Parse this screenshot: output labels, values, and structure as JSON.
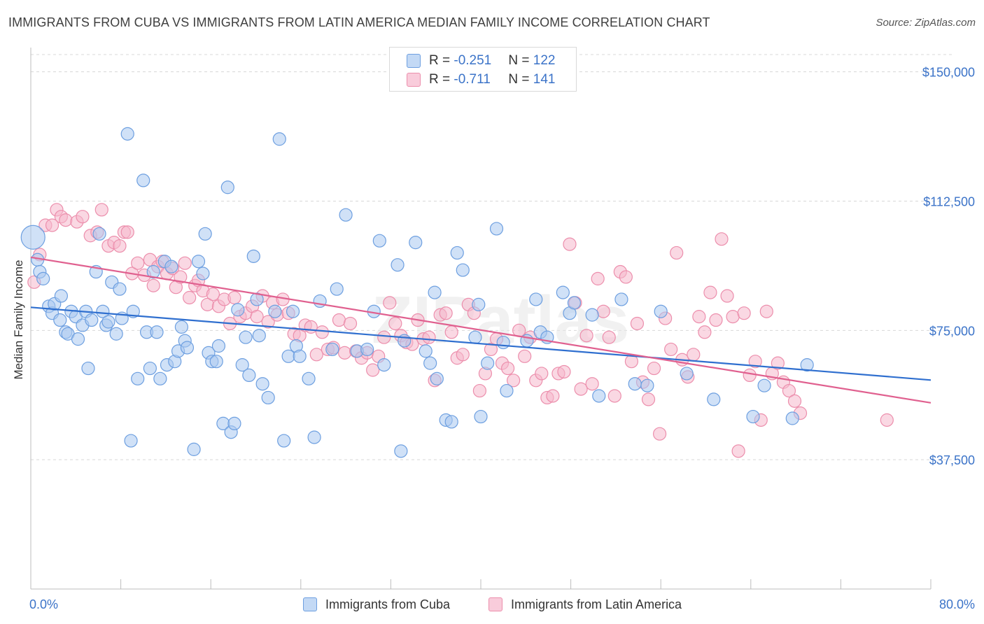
{
  "title": "IMMIGRANTS FROM CUBA VS IMMIGRANTS FROM LATIN AMERICA MEDIAN FAMILY INCOME CORRELATION CHART",
  "source": "Source: ZipAtlas.com",
  "watermark": "ZIPatlas",
  "colors": {
    "blue_fill": "#a9c8f0",
    "blue_stroke": "#6d9fe0",
    "blue_line": "#2f6fcf",
    "pink_fill": "#f6b8cc",
    "pink_stroke": "#ec8eac",
    "pink_line": "#e0608f",
    "axis_label": "#3b73c8",
    "grid": "#d8d8d8"
  },
  "legend": {
    "rows": [
      {
        "r_label": "R = ",
        "r_value": "-0.251",
        "n_label": "N = ",
        "n_value": "122"
      },
      {
        "r_label": "R = ",
        "r_value": "-0.711",
        "n_label": "N = ",
        "n_value": "141"
      }
    ]
  },
  "chart_data": {
    "type": "scatter",
    "title": "IMMIGRANTS FROM CUBA VS IMMIGRANTS FROM LATIN AMERICA MEDIAN FAMILY INCOME CORRELATION CHART",
    "xlabel": "",
    "ylabel": "Median Family Income",
    "xlim": [
      0,
      80
    ],
    "ylim": [
      0,
      155000
    ],
    "x_tick_labels": [
      "0.0%",
      "80.0%"
    ],
    "y_ticks": [
      37500,
      75000,
      112500,
      150000
    ],
    "y_tick_labels": [
      "$37,500",
      "$75,000",
      "$112,500",
      "$150,000"
    ],
    "grid": true,
    "legend_position": "top-center",
    "series": [
      {
        "name": "Immigrants from Cuba",
        "color": "#a9c8f0",
        "trend": {
          "x": [
            0,
            80
          ],
          "y": [
            81700,
            60600
          ]
        },
        "points": [
          [
            0.2,
            102000
          ],
          [
            0.6,
            95500
          ],
          [
            0.8,
            92000
          ],
          [
            1.1,
            90000
          ],
          [
            1.6,
            82000
          ],
          [
            1.9,
            80000
          ],
          [
            2.1,
            82700
          ],
          [
            2.6,
            78000
          ],
          [
            2.7,
            85000
          ],
          [
            3.1,
            74500
          ],
          [
            3.3,
            74000
          ],
          [
            3.6,
            80500
          ],
          [
            4.0,
            79000
          ],
          [
            4.2,
            72500
          ],
          [
            4.6,
            76500
          ],
          [
            4.9,
            80500
          ],
          [
            5.1,
            64000
          ],
          [
            5.4,
            78000
          ],
          [
            5.8,
            92000
          ],
          [
            6.1,
            103000
          ],
          [
            6.4,
            80500
          ],
          [
            6.7,
            76500
          ],
          [
            6.9,
            77500
          ],
          [
            7.2,
            89000
          ],
          [
            7.6,
            74000
          ],
          [
            7.9,
            87000
          ],
          [
            8.1,
            78500
          ],
          [
            8.6,
            132000
          ],
          [
            8.9,
            43000
          ],
          [
            9.1,
            80500
          ],
          [
            9.5,
            61000
          ],
          [
            10.0,
            118500
          ],
          [
            10.3,
            74500
          ],
          [
            10.6,
            64000
          ],
          [
            10.9,
            92000
          ],
          [
            11.2,
            74500
          ],
          [
            11.5,
            61000
          ],
          [
            11.9,
            95000
          ],
          [
            12.1,
            65000
          ],
          [
            12.5,
            93500
          ],
          [
            12.8,
            66000
          ],
          [
            13.1,
            69000
          ],
          [
            13.4,
            76000
          ],
          [
            13.7,
            72000
          ],
          [
            13.9,
            70000
          ],
          [
            14.5,
            40500
          ],
          [
            14.9,
            95000
          ],
          [
            15.3,
            91500
          ],
          [
            15.5,
            103000
          ],
          [
            15.8,
            68500
          ],
          [
            16.1,
            66000
          ],
          [
            16.5,
            66000
          ],
          [
            16.7,
            70500
          ],
          [
            17.1,
            48000
          ],
          [
            17.5,
            116500
          ],
          [
            17.8,
            45500
          ],
          [
            18.1,
            48000
          ],
          [
            18.4,
            81000
          ],
          [
            18.8,
            65000
          ],
          [
            19.1,
            73000
          ],
          [
            19.4,
            62000
          ],
          [
            19.8,
            96500
          ],
          [
            20.1,
            84000
          ],
          [
            20.3,
            73500
          ],
          [
            20.6,
            59500
          ],
          [
            21.1,
            55500
          ],
          [
            21.7,
            80500
          ],
          [
            22.1,
            130500
          ],
          [
            22.5,
            43000
          ],
          [
            22.9,
            67500
          ],
          [
            23.3,
            80500
          ],
          [
            23.6,
            70500
          ],
          [
            23.9,
            67500
          ],
          [
            24.7,
            61000
          ],
          [
            25.2,
            44000
          ],
          [
            25.7,
            83500
          ],
          [
            26.8,
            69500
          ],
          [
            27.2,
            87000
          ],
          [
            28.0,
            108500
          ],
          [
            29.0,
            69000
          ],
          [
            29.9,
            69500
          ],
          [
            30.5,
            80500
          ],
          [
            31.0,
            101000
          ],
          [
            31.4,
            65000
          ],
          [
            32.6,
            94000
          ],
          [
            32.9,
            40000
          ],
          [
            33.2,
            72000
          ],
          [
            34.2,
            100500
          ],
          [
            35.1,
            69000
          ],
          [
            35.5,
            65500
          ],
          [
            35.9,
            86000
          ],
          [
            36.1,
            61000
          ],
          [
            36.9,
            49000
          ],
          [
            37.4,
            48500
          ],
          [
            37.9,
            97500
          ],
          [
            38.4,
            92500
          ],
          [
            39.5,
            73000
          ],
          [
            39.8,
            82500
          ],
          [
            40.0,
            50000
          ],
          [
            40.6,
            65500
          ],
          [
            41.4,
            104500
          ],
          [
            42.0,
            71500
          ],
          [
            42.3,
            57500
          ],
          [
            44.1,
            72000
          ],
          [
            44.9,
            84000
          ],
          [
            45.3,
            74500
          ],
          [
            45.9,
            73000
          ],
          [
            47.3,
            86000
          ],
          [
            47.9,
            80000
          ],
          [
            48.3,
            83000
          ],
          [
            49.9,
            79500
          ],
          [
            50.5,
            56000
          ],
          [
            52.5,
            84000
          ],
          [
            53.7,
            59500
          ],
          [
            54.8,
            59000
          ],
          [
            56.0,
            80500
          ],
          [
            58.3,
            62500
          ],
          [
            60.7,
            55000
          ],
          [
            64.2,
            50000
          ],
          [
            65.2,
            59000
          ],
          [
            67.7,
            49500
          ],
          [
            69.0,
            65000
          ]
        ]
      },
      {
        "name": "Immigrants from Latin America",
        "color": "#f6b8cc",
        "trend": {
          "x": [
            0,
            80
          ],
          "y": [
            96200,
            54000
          ]
        },
        "points": [
          [
            0.3,
            89000
          ],
          [
            0.8,
            97000
          ],
          [
            1.3,
            105500
          ],
          [
            1.9,
            105500
          ],
          [
            2.3,
            110000
          ],
          [
            2.7,
            108000
          ],
          [
            3.1,
            107000
          ],
          [
            4.1,
            106500
          ],
          [
            4.6,
            108000
          ],
          [
            5.3,
            102500
          ],
          [
            5.9,
            103500
          ],
          [
            6.3,
            110000
          ],
          [
            6.9,
            99500
          ],
          [
            7.4,
            100500
          ],
          [
            7.9,
            99500
          ],
          [
            8.3,
            103500
          ],
          [
            8.6,
            103500
          ],
          [
            9.0,
            91500
          ],
          [
            9.5,
            94500
          ],
          [
            10.1,
            91000
          ],
          [
            10.6,
            95500
          ],
          [
            10.9,
            88000
          ],
          [
            11.3,
            93500
          ],
          [
            11.7,
            95000
          ],
          [
            12.1,
            91500
          ],
          [
            12.6,
            93000
          ],
          [
            12.9,
            87500
          ],
          [
            13.3,
            90500
          ],
          [
            13.7,
            94500
          ],
          [
            14.1,
            84500
          ],
          [
            14.6,
            88000
          ],
          [
            14.9,
            89500
          ],
          [
            15.3,
            86500
          ],
          [
            15.7,
            82500
          ],
          [
            16.2,
            85500
          ],
          [
            16.7,
            82000
          ],
          [
            17.2,
            84000
          ],
          [
            17.7,
            77000
          ],
          [
            18.1,
            84500
          ],
          [
            18.6,
            79000
          ],
          [
            19.1,
            80000
          ],
          [
            19.7,
            82000
          ],
          [
            20.1,
            79000
          ],
          [
            20.6,
            85000
          ],
          [
            21.1,
            77500
          ],
          [
            21.5,
            83000
          ],
          [
            21.9,
            79500
          ],
          [
            22.4,
            84000
          ],
          [
            22.9,
            80000
          ],
          [
            23.4,
            74000
          ],
          [
            23.9,
            73500
          ],
          [
            24.4,
            76500
          ],
          [
            24.9,
            76000
          ],
          [
            25.4,
            68000
          ],
          [
            25.9,
            74500
          ],
          [
            26.4,
            69500
          ],
          [
            26.9,
            70000
          ],
          [
            27.4,
            78000
          ],
          [
            27.9,
            68500
          ],
          [
            28.4,
            77000
          ],
          [
            28.9,
            69000
          ],
          [
            29.4,
            67000
          ],
          [
            29.9,
            68500
          ],
          [
            30.4,
            63500
          ],
          [
            30.9,
            67500
          ],
          [
            31.4,
            73000
          ],
          [
            31.9,
            83000
          ],
          [
            32.4,
            77000
          ],
          [
            32.9,
            73500
          ],
          [
            33.4,
            71500
          ],
          [
            33.9,
            71000
          ],
          [
            34.4,
            78000
          ],
          [
            34.9,
            72500
          ],
          [
            35.4,
            73000
          ],
          [
            35.9,
            60500
          ],
          [
            36.4,
            79500
          ],
          [
            36.9,
            80000
          ],
          [
            37.4,
            74500
          ],
          [
            37.9,
            67000
          ],
          [
            38.4,
            68000
          ],
          [
            38.9,
            82500
          ],
          [
            39.4,
            80000
          ],
          [
            39.9,
            57500
          ],
          [
            40.4,
            62500
          ],
          [
            40.9,
            69500
          ],
          [
            41.4,
            72500
          ],
          [
            41.9,
            65500
          ],
          [
            42.4,
            64000
          ],
          [
            42.9,
            60500
          ],
          [
            43.4,
            75000
          ],
          [
            43.9,
            67500
          ],
          [
            44.4,
            73000
          ],
          [
            44.9,
            60500
          ],
          [
            45.4,
            62500
          ],
          [
            45.9,
            55500
          ],
          [
            46.4,
            56000
          ],
          [
            46.9,
            62500
          ],
          [
            47.4,
            63000
          ],
          [
            47.9,
            100000
          ],
          [
            48.4,
            83000
          ],
          [
            48.9,
            58000
          ],
          [
            49.4,
            73500
          ],
          [
            49.9,
            59500
          ],
          [
            50.4,
            90000
          ],
          [
            50.9,
            80500
          ],
          [
            51.4,
            73000
          ],
          [
            51.9,
            56000
          ],
          [
            52.4,
            92000
          ],
          [
            52.9,
            90500
          ],
          [
            53.4,
            66000
          ],
          [
            53.9,
            77000
          ],
          [
            54.4,
            60000
          ],
          [
            54.9,
            55000
          ],
          [
            55.4,
            64000
          ],
          [
            55.9,
            45000
          ],
          [
            56.4,
            78500
          ],
          [
            56.9,
            69500
          ],
          [
            57.4,
            97500
          ],
          [
            57.9,
            66500
          ],
          [
            58.4,
            61500
          ],
          [
            58.9,
            68000
          ],
          [
            59.4,
            79000
          ],
          [
            59.9,
            74500
          ],
          [
            60.4,
            86000
          ],
          [
            60.9,
            78000
          ],
          [
            61.4,
            101500
          ],
          [
            61.9,
            85000
          ],
          [
            62.4,
            79000
          ],
          [
            62.9,
            40000
          ],
          [
            63.4,
            80000
          ],
          [
            63.9,
            62000
          ],
          [
            64.4,
            66000
          ],
          [
            64.9,
            49000
          ],
          [
            65.4,
            80500
          ],
          [
            65.9,
            62500
          ],
          [
            66.4,
            65500
          ],
          [
            66.9,
            60000
          ],
          [
            67.4,
            57500
          ],
          [
            67.9,
            54500
          ],
          [
            68.4,
            51000
          ],
          [
            76.1,
            49000
          ]
        ]
      }
    ]
  },
  "bottom_legend": [
    {
      "label": "Immigrants from Cuba"
    },
    {
      "label": "Immigrants from Latin America"
    }
  ]
}
